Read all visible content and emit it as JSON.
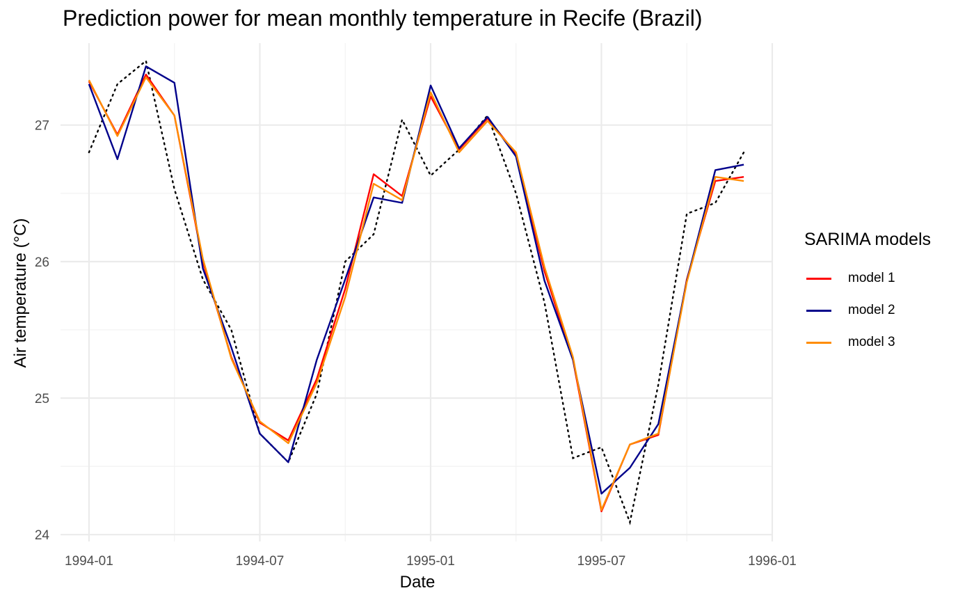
{
  "chart_data": {
    "type": "line",
    "title": "Prediction power for mean monthly temperature in Recife (Brazil)",
    "xlabel": "Date",
    "ylabel": "Air temperature (°C)",
    "x_ticks": [
      "1994-01",
      "1994-07",
      "1995-01",
      "1995-07",
      "1996-01"
    ],
    "y_ticks": [
      24,
      25,
      26,
      27
    ],
    "ylim": [
      23.95,
      27.6
    ],
    "xlim": [
      "1993-12",
      "1996-01"
    ],
    "grid": true,
    "legend": {
      "title": "SARIMA models",
      "placement": "right"
    },
    "x": [
      "1994-01",
      "1994-02",
      "1994-03",
      "1994-04",
      "1994-05",
      "1994-06",
      "1994-07",
      "1994-08",
      "1994-09",
      "1994-10",
      "1994-11",
      "1994-12",
      "1995-01",
      "1995-02",
      "1995-03",
      "1995-04",
      "1995-05",
      "1995-06",
      "1995-07",
      "1995-08",
      "1995-09",
      "1995-10",
      "1995-11",
      "1995-12"
    ],
    "observed": {
      "style": "dotted",
      "color": "#000000",
      "values": [
        26.8,
        27.3,
        27.47,
        26.53,
        25.87,
        25.5,
        24.74,
        24.53,
        25.03,
        26.0,
        26.2,
        27.04,
        26.63,
        26.82,
        27.07,
        26.5,
        25.7,
        24.56,
        24.64,
        24.09,
        25.1,
        26.35,
        26.43,
        26.8
      ]
    },
    "series": [
      {
        "name": "model 1",
        "color": "#ff0000",
        "values": [
          27.32,
          26.93,
          27.37,
          27.07,
          26.0,
          25.3,
          24.82,
          24.69,
          25.14,
          25.8,
          26.64,
          26.48,
          27.21,
          26.82,
          27.05,
          26.79,
          25.93,
          25.28,
          24.17,
          24.66,
          24.73,
          25.87,
          26.59,
          26.62
        ]
      },
      {
        "name": "model 2",
        "color": "#00008b",
        "values": [
          27.3,
          26.75,
          27.43,
          27.31,
          25.95,
          25.37,
          24.74,
          24.53,
          25.28,
          25.87,
          26.47,
          26.43,
          27.29,
          26.83,
          27.06,
          26.77,
          25.86,
          25.28,
          24.3,
          24.49,
          24.81,
          25.86,
          26.67,
          26.71
        ]
      },
      {
        "name": "model 3",
        "color": "#ff8c00",
        "values": [
          27.33,
          26.92,
          27.35,
          27.07,
          26.02,
          25.29,
          24.83,
          24.67,
          25.11,
          25.74,
          26.57,
          26.45,
          27.24,
          26.8,
          27.03,
          26.8,
          25.96,
          25.3,
          24.18,
          24.66,
          24.74,
          25.85,
          26.62,
          26.59
        ]
      }
    ]
  }
}
